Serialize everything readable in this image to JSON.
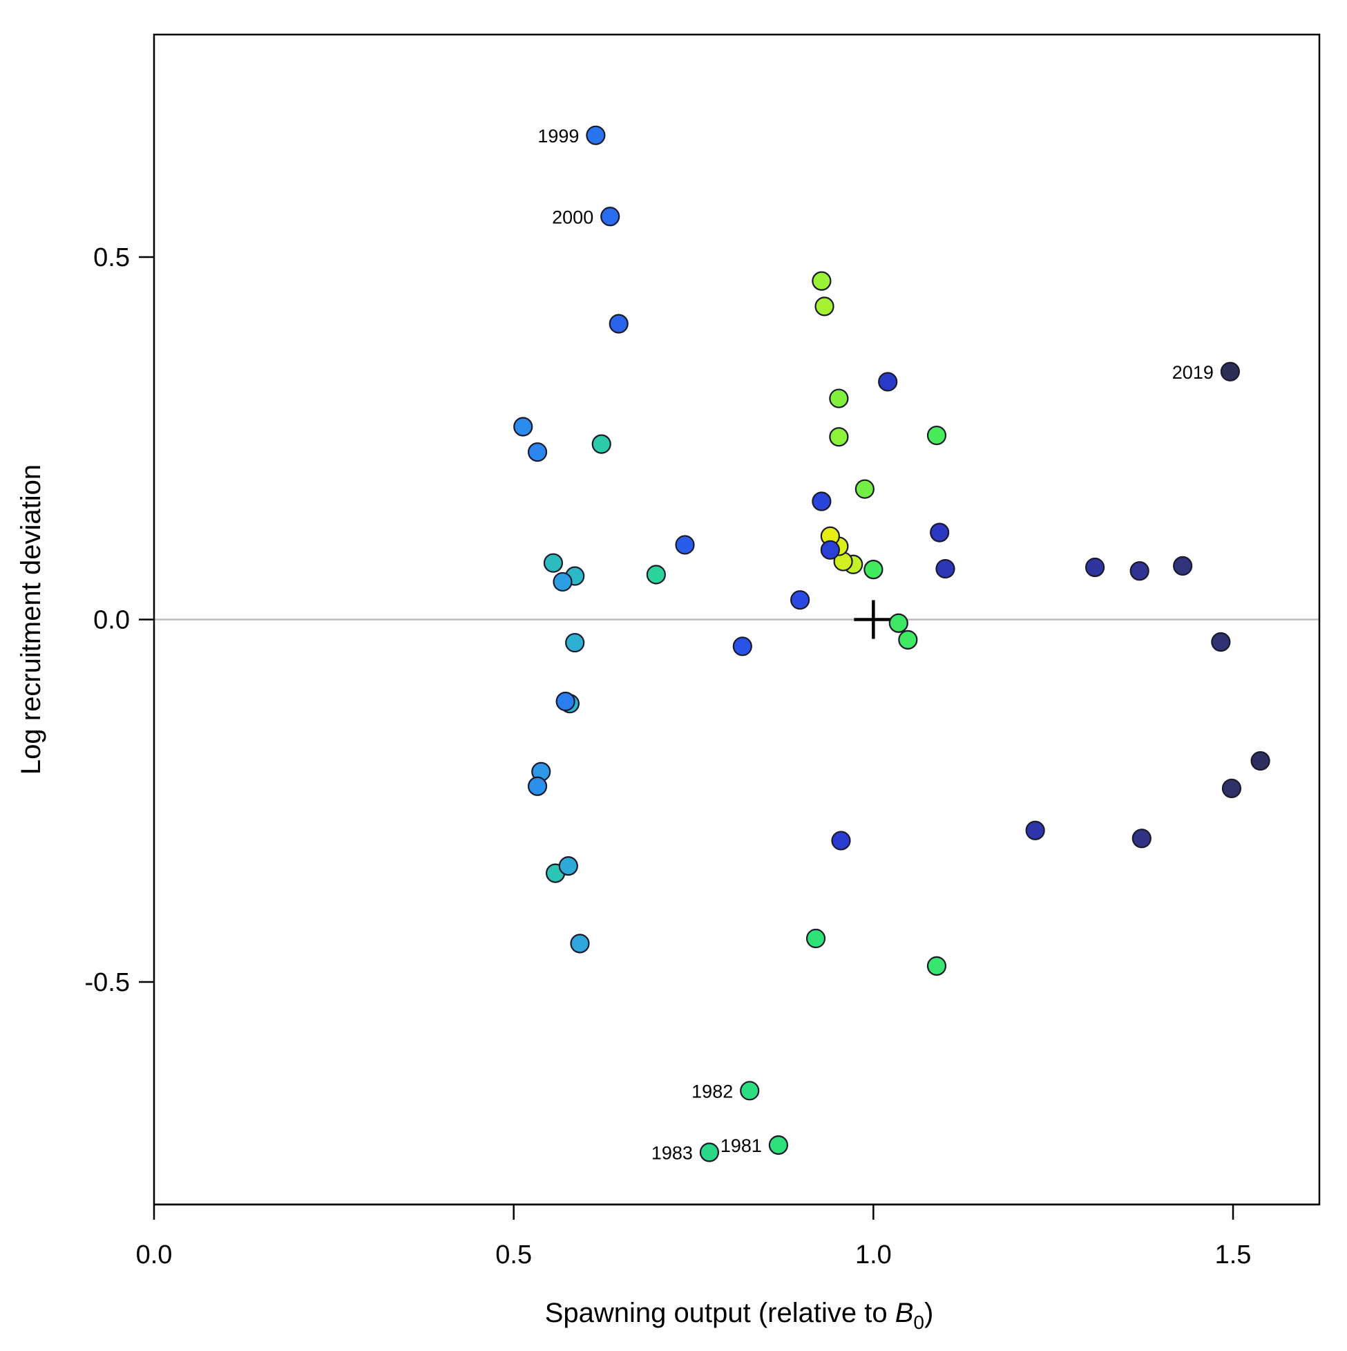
{
  "chart_data": {
    "type": "scatter",
    "title": "",
    "xlabel": "Spawning output (relative to ",
    "xlabel_symbol": "B",
    "xlabel_subscript": "0",
    "xlabel_suffix": ")",
    "ylabel": "Log recruitment deviation",
    "xlim": [
      0.0,
      1.62
    ],
    "ylim": [
      -0.807,
      0.807
    ],
    "xticks": [
      0.0,
      0.5,
      1.0,
      1.5
    ],
    "xtick_labels": [
      "0.0",
      "0.5",
      "1.0",
      "1.5"
    ],
    "yticks": [
      -0.5,
      0.0,
      0.5
    ],
    "ytick_labels": [
      "-0.5",
      "0.0",
      "0.5"
    ],
    "reference_line_y": 0.0,
    "reference_line_color": "#bdbdbd",
    "marker": {
      "x": 1.0,
      "y": 0.0,
      "symbol": "plus",
      "color": "#000000"
    },
    "grid": false,
    "legend": "none",
    "points": [
      {
        "x": 0.868,
        "y": -0.725,
        "color": "#2ee07a",
        "label": "1981"
      },
      {
        "x": 0.828,
        "y": -0.65,
        "color": "#2dde80",
        "label": "1982"
      },
      {
        "x": 0.772,
        "y": -0.735,
        "color": "#2bd888",
        "label": "1983"
      },
      {
        "x": 0.92,
        "y": -0.44,
        "color": "#2fe278",
        "label": ""
      },
      {
        "x": 1.088,
        "y": -0.478,
        "color": "#36e66e",
        "label": ""
      },
      {
        "x": 1.048,
        "y": -0.028,
        "color": "#40ea62",
        "label": ""
      },
      {
        "x": 1.035,
        "y": -0.005,
        "color": "#3ee864",
        "label": ""
      },
      {
        "x": 1.0,
        "y": 0.069,
        "color": "#42ea5e",
        "label": ""
      },
      {
        "x": 1.088,
        "y": 0.254,
        "color": "#46ec5a",
        "label": ""
      },
      {
        "x": 0.988,
        "y": 0.18,
        "color": "#74ef45",
        "label": ""
      },
      {
        "x": 0.952,
        "y": 0.305,
        "color": "#82f13e",
        "label": ""
      },
      {
        "x": 0.952,
        "y": 0.252,
        "color": "#8cf23a",
        "label": ""
      },
      {
        "x": 0.928,
        "y": 0.467,
        "color": "#9af236",
        "label": ""
      },
      {
        "x": 0.932,
        "y": 0.432,
        "color": "#a6f232",
        "label": ""
      },
      {
        "x": 0.972,
        "y": 0.076,
        "color": "#c2f228",
        "label": ""
      },
      {
        "x": 0.958,
        "y": 0.08,
        "color": "#d2f020",
        "label": ""
      },
      {
        "x": 0.952,
        "y": 0.101,
        "color": "#dcef1a",
        "label": ""
      },
      {
        "x": 0.94,
        "y": 0.115,
        "color": "#e6ee14",
        "label": ""
      },
      {
        "x": 0.698,
        "y": 0.062,
        "color": "#2bd49a",
        "label": ""
      },
      {
        "x": 0.622,
        "y": 0.242,
        "color": "#2ccaa8",
        "label": ""
      },
      {
        "x": 0.558,
        "y": -0.35,
        "color": "#2cc4b4",
        "label": ""
      },
      {
        "x": 0.555,
        "y": 0.078,
        "color": "#2cbcbe",
        "label": ""
      },
      {
        "x": 0.585,
        "y": 0.06,
        "color": "#2cb8c6",
        "label": ""
      },
      {
        "x": 0.578,
        "y": -0.116,
        "color": "#2cb4cc",
        "label": ""
      },
      {
        "x": 0.585,
        "y": -0.032,
        "color": "#2db0d2",
        "label": ""
      },
      {
        "x": 0.576,
        "y": -0.34,
        "color": "#2eaad8",
        "label": ""
      },
      {
        "x": 0.592,
        "y": -0.447,
        "color": "#2fa6dc",
        "label": ""
      },
      {
        "x": 0.568,
        "y": 0.052,
        "color": "#2e9ee4",
        "label": ""
      },
      {
        "x": 0.538,
        "y": -0.21,
        "color": "#2e98e8",
        "label": ""
      },
      {
        "x": 0.533,
        "y": -0.23,
        "color": "#2d90ec",
        "label": ""
      },
      {
        "x": 0.513,
        "y": 0.266,
        "color": "#2c8cee",
        "label": ""
      },
      {
        "x": 0.533,
        "y": 0.231,
        "color": "#2c86f0",
        "label": ""
      },
      {
        "x": 0.572,
        "y": -0.113,
        "color": "#2a7ef0",
        "label": ""
      },
      {
        "x": 0.614,
        "y": 0.668,
        "color": "#2a74f0",
        "label": "1999"
      },
      {
        "x": 0.634,
        "y": 0.556,
        "color": "#2a6cee",
        "label": "2000"
      },
      {
        "x": 0.646,
        "y": 0.408,
        "color": "#2a64ec",
        "label": ""
      },
      {
        "x": 0.738,
        "y": 0.103,
        "color": "#2a5cea",
        "label": ""
      },
      {
        "x": 0.818,
        "y": -0.037,
        "color": "#2a52e6",
        "label": ""
      },
      {
        "x": 0.898,
        "y": 0.027,
        "color": "#2a4ae2",
        "label": ""
      },
      {
        "x": 0.928,
        "y": 0.163,
        "color": "#2a44dc",
        "label": ""
      },
      {
        "x": 0.94,
        "y": 0.096,
        "color": "#2a40d6",
        "label": ""
      },
      {
        "x": 0.955,
        "y": -0.305,
        "color": "#2a3cd0",
        "label": ""
      },
      {
        "x": 1.02,
        "y": 0.328,
        "color": "#2a3ac8",
        "label": ""
      },
      {
        "x": 1.092,
        "y": 0.12,
        "color": "#2c38c0",
        "label": ""
      },
      {
        "x": 1.1,
        "y": 0.07,
        "color": "#2c36b6",
        "label": ""
      },
      {
        "x": 1.225,
        "y": -0.291,
        "color": "#2e35aa",
        "label": ""
      },
      {
        "x": 1.308,
        "y": 0.072,
        "color": "#2f349e",
        "label": ""
      },
      {
        "x": 1.37,
        "y": 0.067,
        "color": "#303392",
        "label": ""
      },
      {
        "x": 1.373,
        "y": -0.302,
        "color": "#303286",
        "label": ""
      },
      {
        "x": 1.43,
        "y": 0.074,
        "color": "#30327c",
        "label": ""
      },
      {
        "x": 1.483,
        "y": -0.031,
        "color": "#303172",
        "label": ""
      },
      {
        "x": 1.498,
        "y": -0.233,
        "color": "#2f3068",
        "label": ""
      },
      {
        "x": 1.538,
        "y": -0.195,
        "color": "#2e2f60",
        "label": ""
      },
      {
        "x": 1.496,
        "y": 0.342,
        "color": "#2d2e58",
        "label": "2019"
      }
    ]
  }
}
